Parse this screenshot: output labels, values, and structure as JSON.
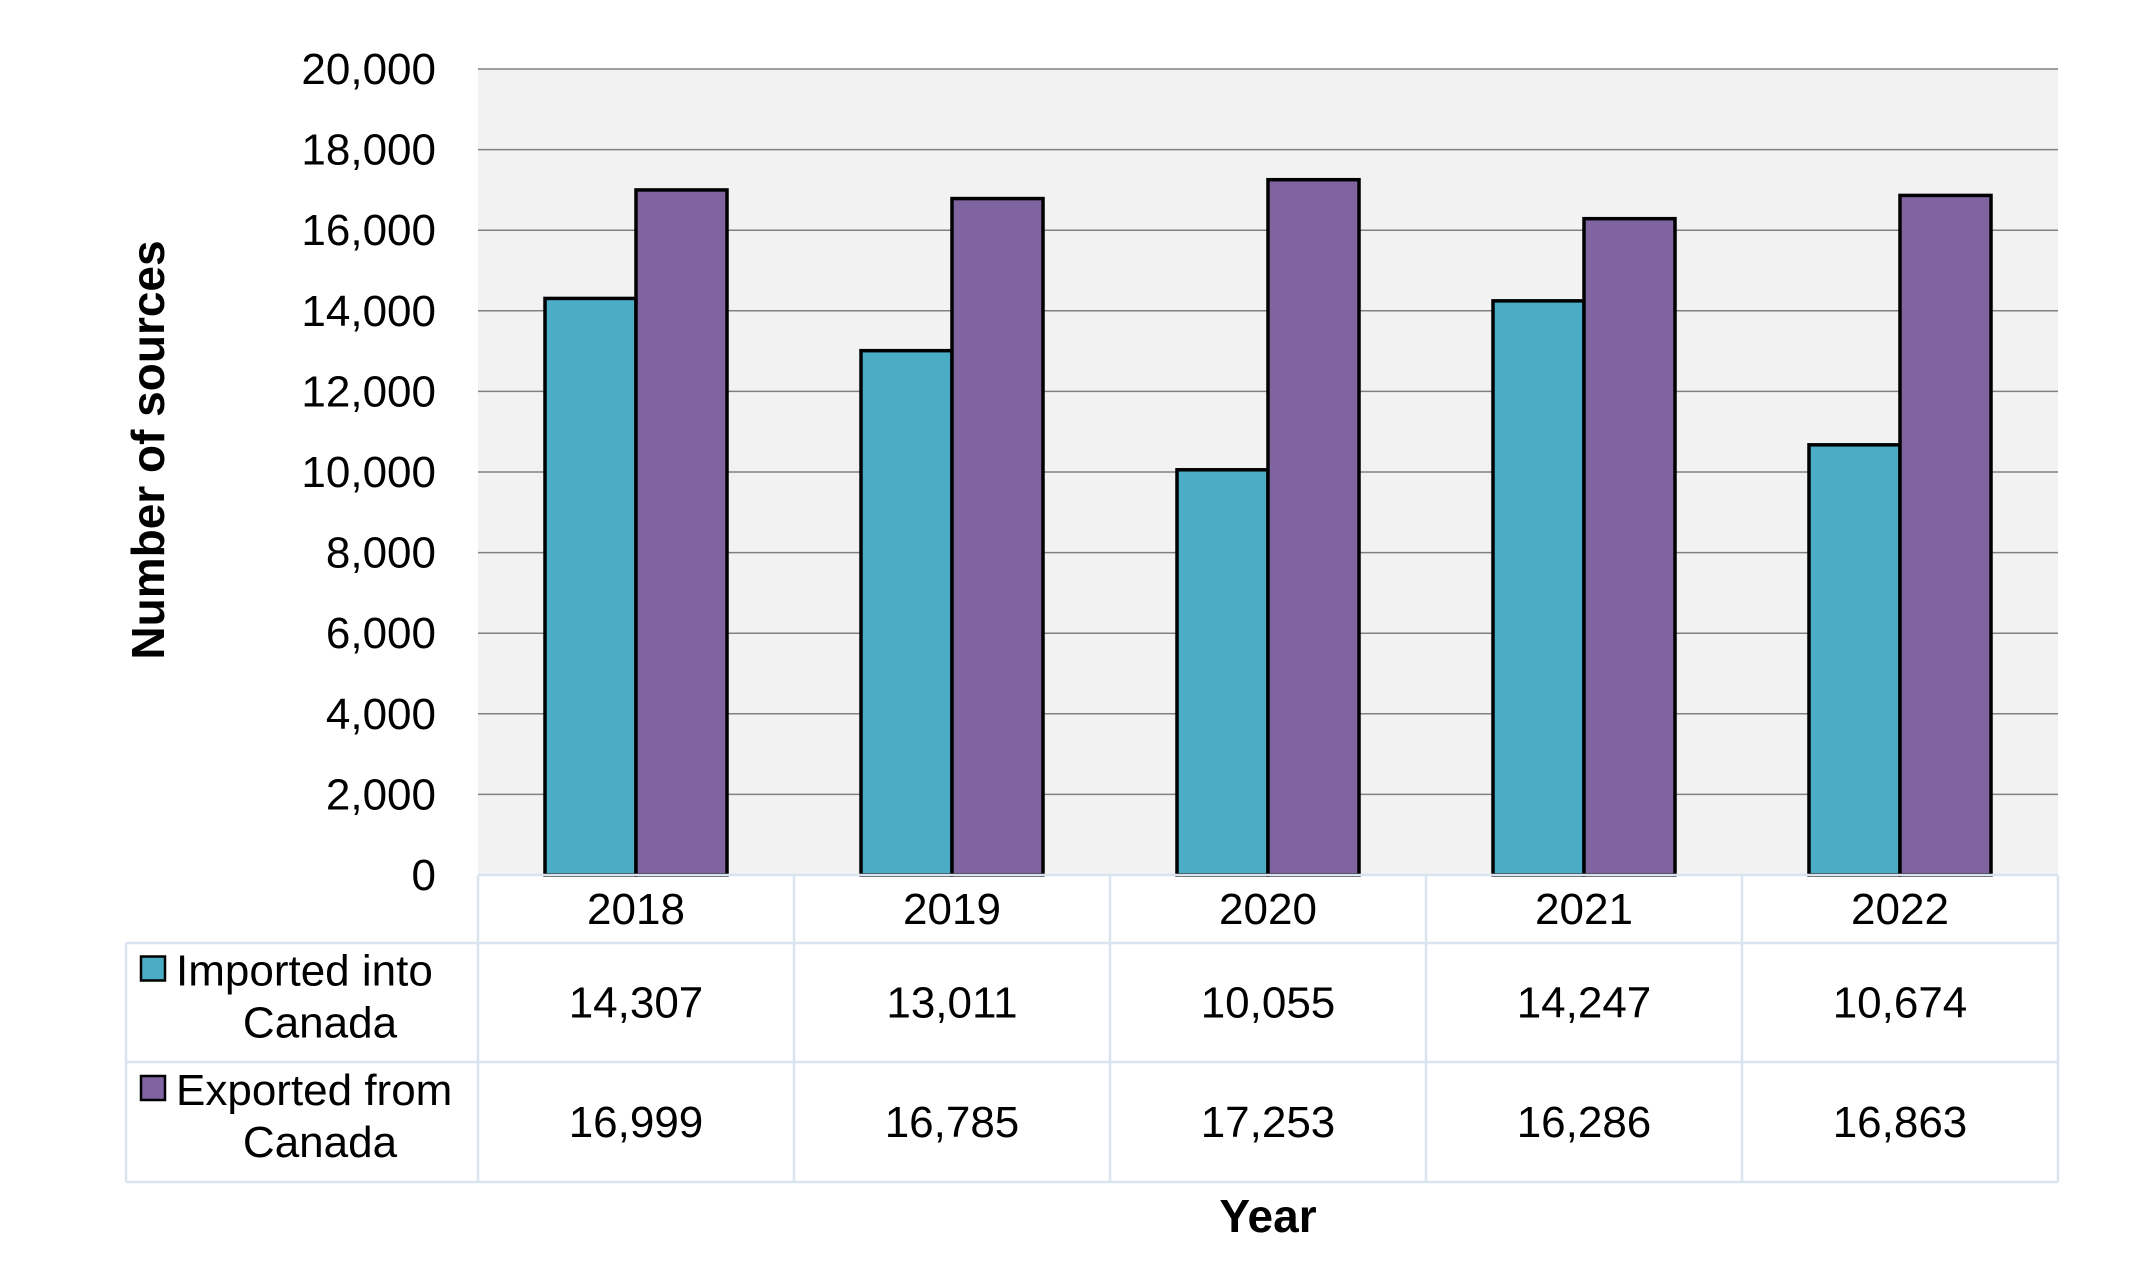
{
  "chart_data": {
    "type": "bar",
    "title": "",
    "xlabel": "Year",
    "ylabel": "Number of sources",
    "ylim": [
      0,
      20000
    ],
    "ytick_step": 2000,
    "yticks": [
      "0",
      "2,000",
      "4,000",
      "6,000",
      "8,000",
      "10,000",
      "12,000",
      "14,000",
      "16,000",
      "18,000",
      "20,000"
    ],
    "grid": true,
    "legend": "data-table-left",
    "categories": [
      "2018",
      "2019",
      "2020",
      "2021",
      "2022"
    ],
    "series": [
      {
        "name": "Imported into Canada",
        "name_lines": [
          "Imported into",
          "Canada"
        ],
        "values": [
          14307,
          13011,
          10055,
          14247,
          10674
        ],
        "labels": [
          "14,307",
          "13,011",
          "10,055",
          "14,247",
          "10,674"
        ],
        "color": "#4BACC6"
      },
      {
        "name": "Exported from Canada",
        "name_lines": [
          "Exported from",
          "Canada"
        ],
        "values": [
          16999,
          16785,
          17253,
          16286,
          16863
        ],
        "labels": [
          "16,999",
          "16,785",
          "17,253",
          "16,286",
          "16,863"
        ],
        "color": "#8064A2"
      }
    ],
    "colors": {
      "plot_background": "#F2F2F2",
      "gridline": "#808080",
      "bar_outline": "#000000",
      "table_border": "#D9E4F0"
    }
  }
}
